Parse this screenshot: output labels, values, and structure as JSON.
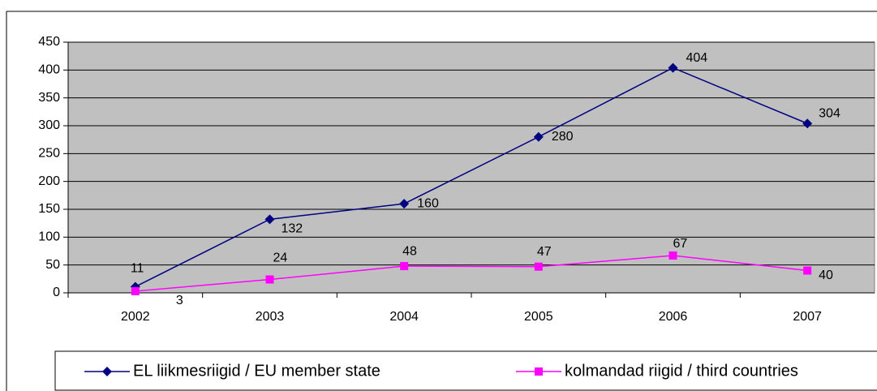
{
  "chart_data": {
    "type": "line",
    "categories": [
      "2002",
      "2003",
      "2004",
      "2005",
      "2006",
      "2007"
    ],
    "series": [
      {
        "name": "EL liikmesriigid / EU member state",
        "color": "#000080",
        "marker": "diamond",
        "values": [
          11,
          132,
          160,
          280,
          404,
          304
        ]
      },
      {
        "name": "kolmandad riigid / third countries",
        "color": "#ff00ff",
        "marker": "square",
        "values": [
          3,
          24,
          48,
          47,
          67,
          40
        ]
      }
    ],
    "ylim": [
      0,
      450
    ],
    "yticks": [
      0,
      50,
      100,
      150,
      200,
      250,
      300,
      350,
      400,
      450
    ],
    "grid": true,
    "legend": "bottom",
    "plot_background": "#c0c0c0"
  }
}
